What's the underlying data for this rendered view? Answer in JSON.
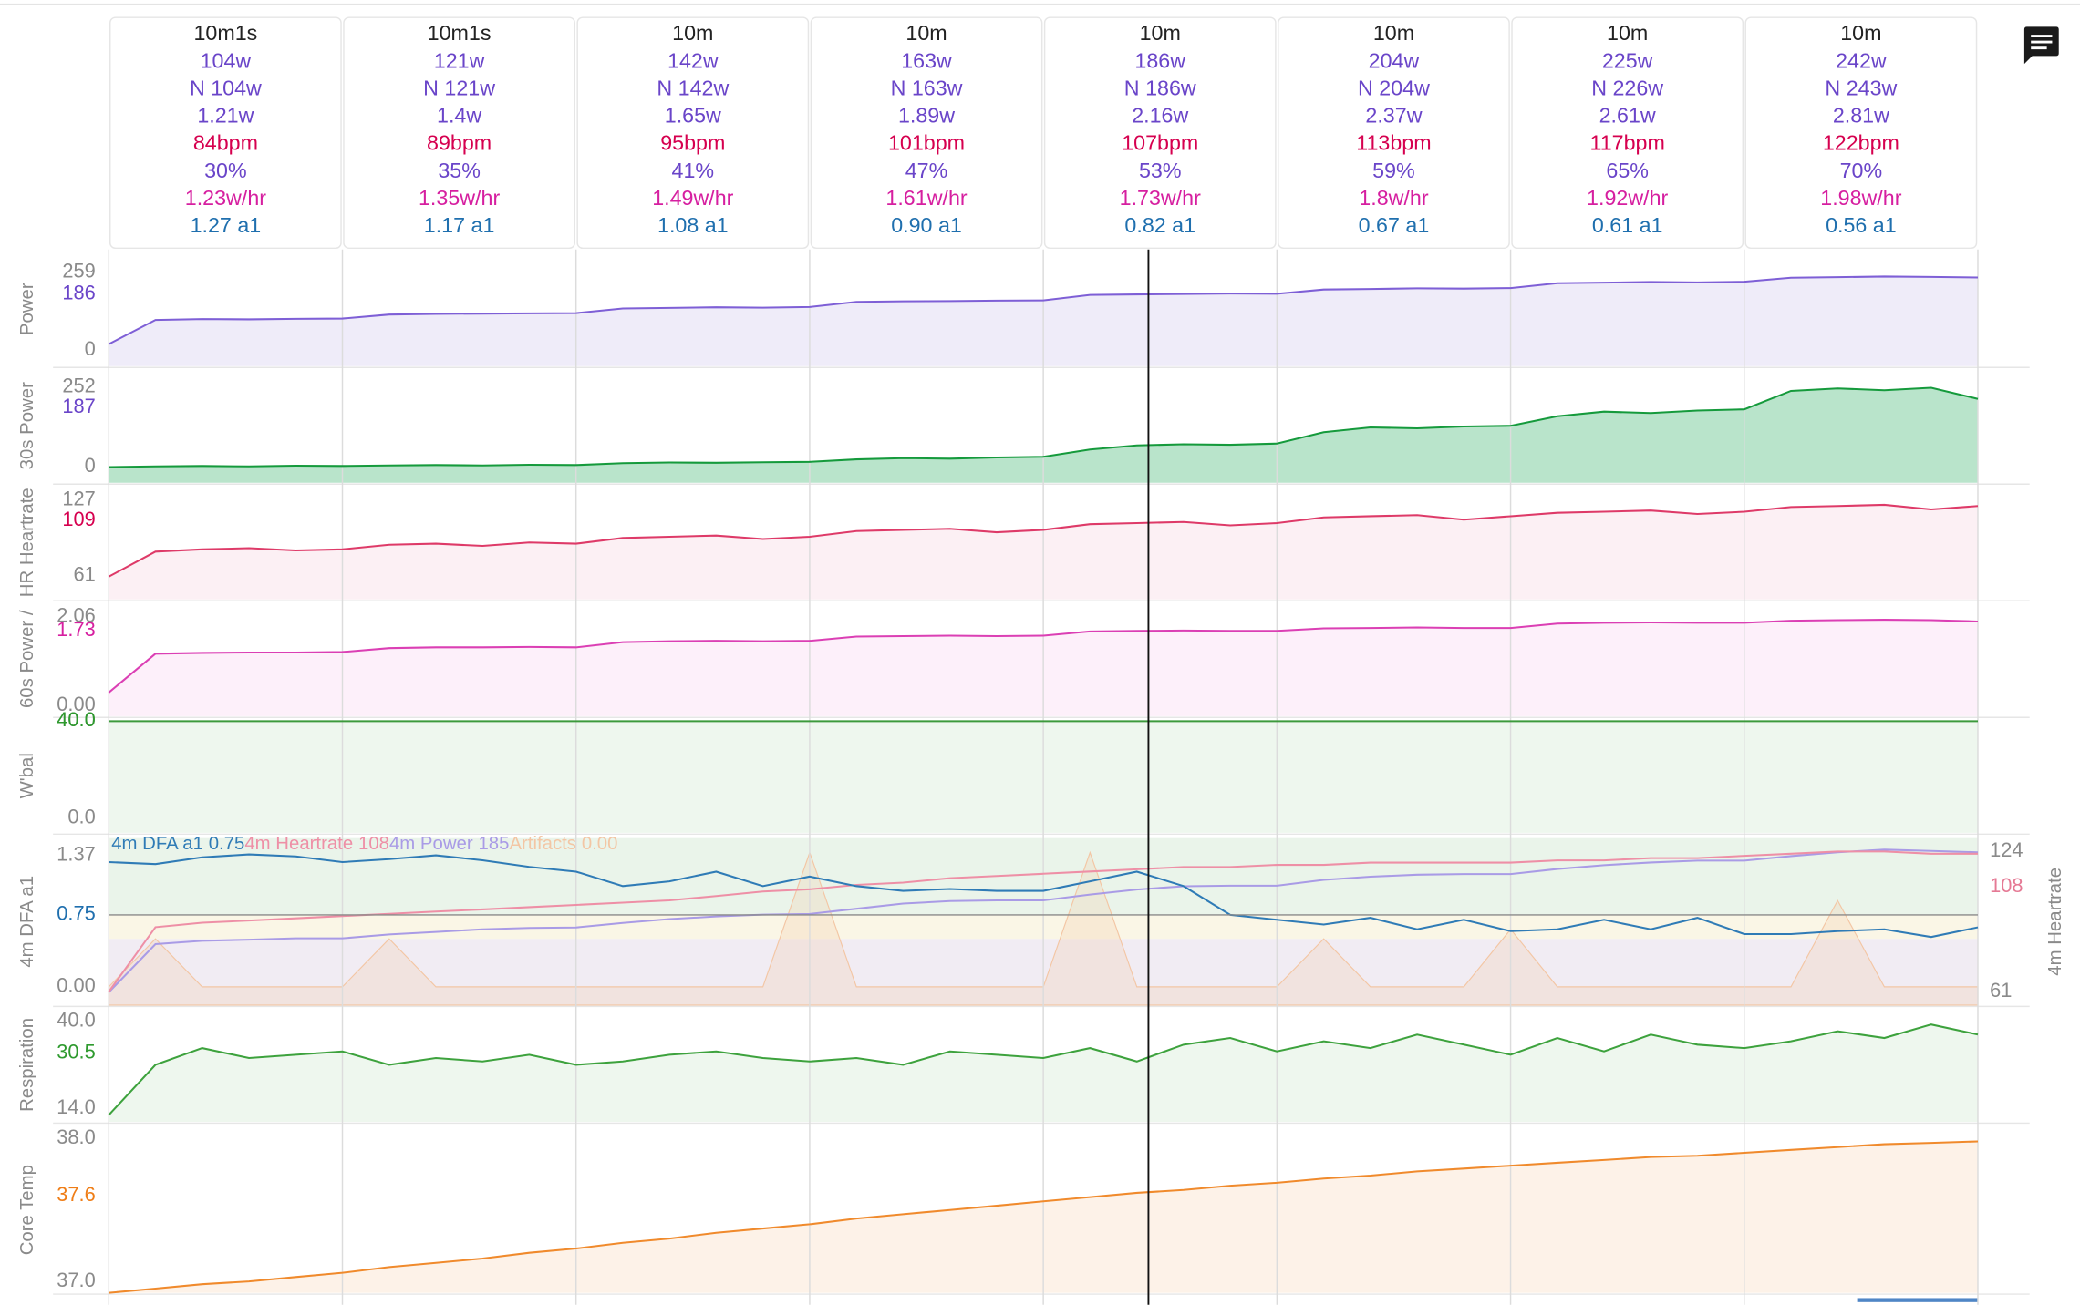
{
  "intervals": [
    [
      "10m1s",
      "104w",
      "N 104w",
      "1.21w",
      "84bpm",
      "30%",
      "1.23w/hr",
      "1.27 a1"
    ],
    [
      "10m1s",
      "121w",
      "N 121w",
      "1.4w",
      "89bpm",
      "35%",
      "1.35w/hr",
      "1.17 a1"
    ],
    [
      "10m",
      "142w",
      "N 142w",
      "1.65w",
      "95bpm",
      "41%",
      "1.49w/hr",
      "1.08 a1"
    ],
    [
      "10m",
      "163w",
      "N 163w",
      "1.89w",
      "101bpm",
      "47%",
      "1.61w/hr",
      "0.90 a1"
    ],
    [
      "10m",
      "186w",
      "N 186w",
      "2.16w",
      "107bpm",
      "53%",
      "1.73w/hr",
      "0.82 a1"
    ],
    [
      "10m",
      "204w",
      "N 204w",
      "2.37w",
      "113bpm",
      "59%",
      "1.8w/hr",
      "0.67 a1"
    ],
    [
      "10m",
      "225w",
      "N 226w",
      "2.61w",
      "117bpm",
      "65%",
      "1.92w/hr",
      "0.61 a1"
    ],
    [
      "10m",
      "242w",
      "N 243w",
      "2.81w",
      "122bpm",
      "70%",
      "1.98w/hr",
      "0.56 a1"
    ]
  ],
  "chart_data": {
    "type": "stacked-panels",
    "x": [
      0,
      2,
      4,
      6,
      8,
      10,
      12,
      14,
      16,
      18,
      20,
      22,
      24,
      26,
      28,
      30,
      32,
      34,
      36,
      38,
      40,
      42,
      44,
      46,
      48,
      50,
      52,
      54,
      56,
      58,
      60,
      62,
      64,
      66,
      68,
      70,
      72,
      74,
      76,
      78,
      80
    ],
    "xlim": [
      0,
      80
    ],
    "cursor_x": 44.5,
    "panels": [
      {
        "type": "area",
        "ylabel": "Power",
        "ylim": [
          -53,
          325
        ],
        "yticks": [
          259,
          0
        ],
        "cursor_tick": 186,
        "color": "#7e5fd6",
        "fill": "#efecf9",
        "cursor_color": "#6a45c9",
        "values": [
          20,
          100,
          103,
          102,
          104,
          105,
          118,
          120,
          121,
          122,
          123,
          138,
          140,
          142,
          141,
          143,
          160,
          162,
          163,
          164,
          165,
          183,
          185,
          186,
          188,
          187,
          201,
          203,
          205,
          204,
          206,
          222,
          224,
          226,
          225,
          227,
          240,
          242,
          244,
          243,
          241
        ]
      },
      {
        "type": "area",
        "ylabel": "30s Power",
        "ylim": [
          -50,
          310
        ],
        "yticks": [
          252,
          0
        ],
        "cursor_tick": 187,
        "color": "#159a3c",
        "fill": "#b9e4cb",
        "cursor_color": "#6a45c9",
        "values": [
          0,
          2,
          3,
          2,
          4,
          3,
          5,
          6,
          5,
          7,
          6,
          12,
          14,
          13,
          15,
          16,
          24,
          28,
          26,
          30,
          32,
          55,
          68,
          72,
          70,
          74,
          110,
          125,
          122,
          128,
          130,
          160,
          175,
          170,
          178,
          182,
          240,
          248,
          242,
          250,
          215
        ]
      },
      {
        "type": "area",
        "ylabel": "HR Heartrate",
        "ylim": [
          40,
          140
        ],
        "yticks": [
          127,
          61
        ],
        "cursor_tick": 109,
        "color": "#de3a68",
        "fill": "#fcf0f4",
        "cursor_color": "#d6004f",
        "values": [
          60,
          82,
          84,
          85,
          83,
          84,
          88,
          89,
          87,
          90,
          89,
          94,
          95,
          96,
          93,
          95,
          100,
          101,
          102,
          99,
          101,
          106,
          107,
          108,
          105,
          107,
          112,
          113,
          114,
          110,
          113,
          116,
          117,
          118,
          115,
          117,
          121,
          122,
          123,
          119,
          122
        ]
      },
      {
        "type": "area",
        "ylabel": "60s Power /",
        "ylim": [
          -0.25,
          2.4
        ],
        "yticks": [
          {
            "value": 2.06,
            "label": "2.06"
          },
          {
            "value": 0,
            "label": "0.00"
          }
        ],
        "cursor_tick": 1.73,
        "color": "#db3fb4",
        "fill": "#fdf0fa",
        "cursor_color": "#d61fa0",
        "values": [
          0.3,
          1.2,
          1.22,
          1.23,
          1.23,
          1.24,
          1.33,
          1.35,
          1.35,
          1.36,
          1.35,
          1.47,
          1.49,
          1.5,
          1.49,
          1.5,
          1.6,
          1.61,
          1.62,
          1.61,
          1.62,
          1.72,
          1.73,
          1.74,
          1.73,
          1.73,
          1.79,
          1.8,
          1.81,
          1.8,
          1.8,
          1.9,
          1.92,
          1.93,
          1.92,
          1.92,
          1.97,
          1.98,
          1.99,
          1.98,
          1.95
        ]
      },
      {
        "type": "area",
        "ylabel": "W'bal",
        "ylim": [
          -6,
          41
        ],
        "yticks": [
          {
            "value": 40,
            "label": "40.0"
          },
          {
            "value": 0,
            "label": "0.0"
          }
        ],
        "cursor_tick": {
          "value": 40,
          "label": "40.0"
        },
        "color": "#3c9a3c",
        "fill": "#eef7ee",
        "cursor_color": "#2e9a2e",
        "values": [
          40,
          40,
          40,
          40,
          40,
          40,
          40,
          40,
          40,
          40,
          40,
          40,
          40,
          40,
          40,
          40,
          40,
          40,
          40,
          40,
          40,
          40,
          40,
          40,
          40,
          40,
          40,
          40,
          40,
          40,
          40,
          40,
          40,
          40,
          40,
          40,
          40,
          40,
          40,
          40,
          40
        ]
      },
      {
        "type": "multi-line",
        "ylabel": "4m DFA a1",
        "ylim": [
          -0.19,
          1.55
        ],
        "yticks": [
          1.37,
          {
            "value": 0,
            "label": "0.00"
          }
        ],
        "cursor_tick": 0.75,
        "cursor_color": "#1f6fae",
        "threshold": 0.75,
        "bands": [
          {
            "from": 0.75,
            "to": 1.55,
            "color": "#eaf4ea"
          },
          {
            "from": 0.5,
            "to": 0.75,
            "color": "#faf6e6"
          },
          {
            "from": -0.19,
            "to": 0.5,
            "color": "#f1ecf3"
          }
        ],
        "y2label": "4m Heartrate",
        "y2lim": [
          55,
          130
        ],
        "y2ticks": [
          124,
          61
        ],
        "y2cursor_tick": 108,
        "y2cursor_color": "#e57a95",
        "y3lim": [
          0,
          260
        ],
        "series": [
          {
            "name": "Artifacts",
            "legend_value": "0.00",
            "color": "#f3c6a4",
            "artifact": true,
            "values": [
              0,
              0.5,
              0,
              0,
              0,
              0,
              0.5,
              0,
              0,
              0,
              0,
              0,
              0,
              0,
              0,
              1.4,
              0,
              0,
              0,
              0,
              0,
              1.4,
              0,
              0,
              0,
              0,
              0.5,
              0,
              0,
              0,
              0.6,
              0,
              0,
              0,
              0,
              0,
              0,
              0.9,
              0,
              0,
              0
            ]
          },
          {
            "name": "4m Power",
            "legend_value": "185",
            "color": "#a99be6",
            "axis": "y3",
            "values": [
              20,
              95,
              100,
              102,
              104,
              104,
              110,
              114,
              118,
              120,
              121,
              128,
              134,
              138,
              141,
              142,
              150,
              158,
              162,
              163,
              163,
              172,
              180,
              185,
              186,
              186,
              195,
              200,
              203,
              204,
              204,
              212,
              218,
              222,
              225,
              225,
              232,
              238,
              242,
              240,
              238
            ]
          },
          {
            "name": "4m Heartrate",
            "legend_value": "108",
            "color": "#ee8fa6",
            "axis": "y2",
            "values": [
              61,
              90,
              92,
              93,
              94,
              95,
              96,
              97,
              98,
              99,
              100,
              101,
              102,
              104,
              106,
              107,
              109,
              110,
              112,
              113,
              114,
              115,
              116,
              117,
              117,
              118,
              118,
              119,
              119,
              119,
              119,
              120,
              120,
              121,
              121,
              122,
              123,
              124,
              124,
              123,
              123
            ]
          },
          {
            "name": "4m DFA a1",
            "legend_value": "0.75",
            "color": "#2f7bb6",
            "values": [
              1.3,
              1.28,
              1.35,
              1.38,
              1.36,
              1.3,
              1.33,
              1.37,
              1.32,
              1.25,
              1.2,
              1.05,
              1.1,
              1.2,
              1.05,
              1.15,
              1.05,
              1.0,
              1.02,
              1.0,
              1.0,
              1.1,
              1.2,
              1.05,
              0.75,
              0.7,
              0.65,
              0.72,
              0.6,
              0.7,
              0.58,
              0.6,
              0.7,
              0.6,
              0.72,
              0.55,
              0.55,
              0.58,
              0.6,
              0.52,
              0.62
            ]
          }
        ]
      },
      {
        "type": "area",
        "ylabel": "Respiration",
        "ylim": [
          10,
          44
        ],
        "yticks": [
          {
            "value": 40,
            "label": "40.0"
          },
          {
            "value": 14,
            "label": "14.0"
          }
        ],
        "cursor_tick": 30.5,
        "color": "#3da23d",
        "fill": "#eef7ee",
        "cursor_color": "#2e9a2e",
        "values": [
          12,
          27,
          32,
          29,
          30,
          31,
          27,
          29,
          28,
          30,
          27,
          28,
          30,
          31,
          29,
          28,
          29,
          27,
          31,
          30,
          29,
          32,
          28,
          33,
          35,
          31,
          34,
          32,
          36,
          33,
          30,
          35,
          31,
          36,
          33,
          32,
          34,
          37,
          35,
          39,
          36
        ]
      },
      {
        "type": "area",
        "ylabel": "Core Temp",
        "ylim": [
          36.92,
          38.08
        ],
        "yticks": [
          {
            "value": 38,
            "label": "38.0"
          },
          {
            "value": 37,
            "label": "37.0"
          }
        ],
        "cursor_tick": 37.6,
        "color": "#f08a2c",
        "fill": "#fdf2e8",
        "cursor_color": "#ef7d16",
        "values": [
          36.92,
          36.95,
          36.98,
          37.0,
          37.03,
          37.06,
          37.1,
          37.13,
          37.16,
          37.2,
          37.23,
          37.27,
          37.3,
          37.34,
          37.37,
          37.4,
          37.44,
          37.47,
          37.5,
          37.53,
          37.56,
          37.59,
          37.62,
          37.64,
          37.67,
          37.69,
          37.72,
          37.74,
          37.77,
          37.79,
          37.81,
          37.83,
          37.85,
          37.87,
          37.88,
          37.9,
          37.92,
          37.94,
          37.96,
          37.97,
          37.98
        ]
      }
    ]
  }
}
